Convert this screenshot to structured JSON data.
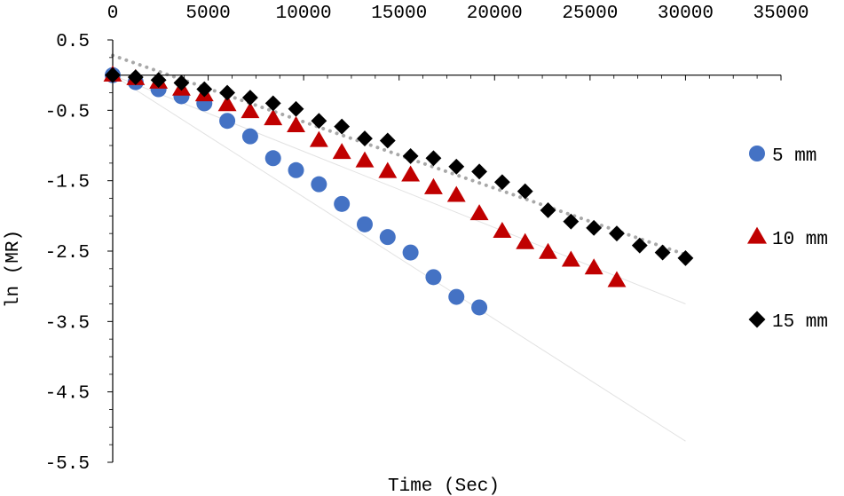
{
  "chart_data": {
    "type": "scatter",
    "title": "",
    "xlabel": "Time (Sec)",
    "ylabel": "ln (MR)",
    "xlim": [
      0,
      35000
    ],
    "ylim": [
      -5.5,
      0.5
    ],
    "x_ticks": [
      "0",
      "5000",
      "10000",
      "15000",
      "20000",
      "25000",
      "30000",
      "35000"
    ],
    "y_ticks": [
      "0.5",
      "-0.5",
      "-1.5",
      "-2.5",
      "-3.5",
      "-4.5",
      "-5.5"
    ],
    "x_axis_position": "top",
    "grid": false,
    "legend_position": "right",
    "series": [
      {
        "name": "5 mm",
        "marker": "circle",
        "color": "#4472C4",
        "x": [
          0,
          1200,
          2400,
          3600,
          4800,
          6000,
          7200,
          8400,
          9600,
          10800,
          12000,
          13200,
          14400,
          15600,
          16800,
          18000,
          19200
        ],
        "y": [
          0,
          -0.1,
          -0.2,
          -0.3,
          -0.4,
          -0.65,
          -0.87,
          -1.18,
          -1.35,
          -1.55,
          -1.83,
          -2.12,
          -2.3,
          -2.52,
          -2.87,
          -3.15,
          -3.3
        ],
        "trend": {
          "x": [
            0,
            30000
          ],
          "y": [
            0,
            -5.2
          ]
        }
      },
      {
        "name": "10 mm",
        "marker": "triangle",
        "color": "#C00000",
        "x": [
          0,
          1200,
          2400,
          3600,
          4800,
          6000,
          7200,
          8400,
          9600,
          10800,
          12000,
          13200,
          14400,
          15600,
          16800,
          18000,
          19200,
          20400,
          21600,
          22800,
          24000,
          25200,
          26400
        ],
        "y": [
          0,
          -0.05,
          -0.1,
          -0.2,
          -0.28,
          -0.42,
          -0.52,
          -0.62,
          -0.72,
          -0.93,
          -1.1,
          -1.22,
          -1.37,
          -1.42,
          -1.6,
          -1.71,
          -1.97,
          -2.22,
          -2.38,
          -2.52,
          -2.63,
          -2.74,
          -2.92
        ],
        "trend": {
          "x": [
            0,
            30000
          ],
          "y": [
            0,
            -3.25
          ]
        }
      },
      {
        "name": "15 mm",
        "marker": "diamond",
        "color": "#000000",
        "x": [
          0,
          1200,
          2400,
          3600,
          4800,
          6000,
          7200,
          8400,
          9600,
          10800,
          12000,
          13200,
          14400,
          15600,
          16800,
          18000,
          19200,
          20400,
          21600,
          22800,
          24000,
          25200,
          26400,
          27600,
          28800,
          30000
        ],
        "y": [
          0,
          -0.03,
          -0.07,
          -0.11,
          -0.2,
          -0.25,
          -0.32,
          -0.4,
          -0.48,
          -0.65,
          -0.73,
          -0.9,
          -0.93,
          -1.15,
          -1.18,
          -1.3,
          -1.37,
          -1.52,
          -1.65,
          -1.92,
          -2.08,
          -2.17,
          -2.25,
          -2.42,
          -2.52,
          -2.6
        ],
        "trend": {
          "x": [
            0,
            30000
          ],
          "y": [
            0.28,
            -2.55
          ]
        }
      }
    ]
  }
}
